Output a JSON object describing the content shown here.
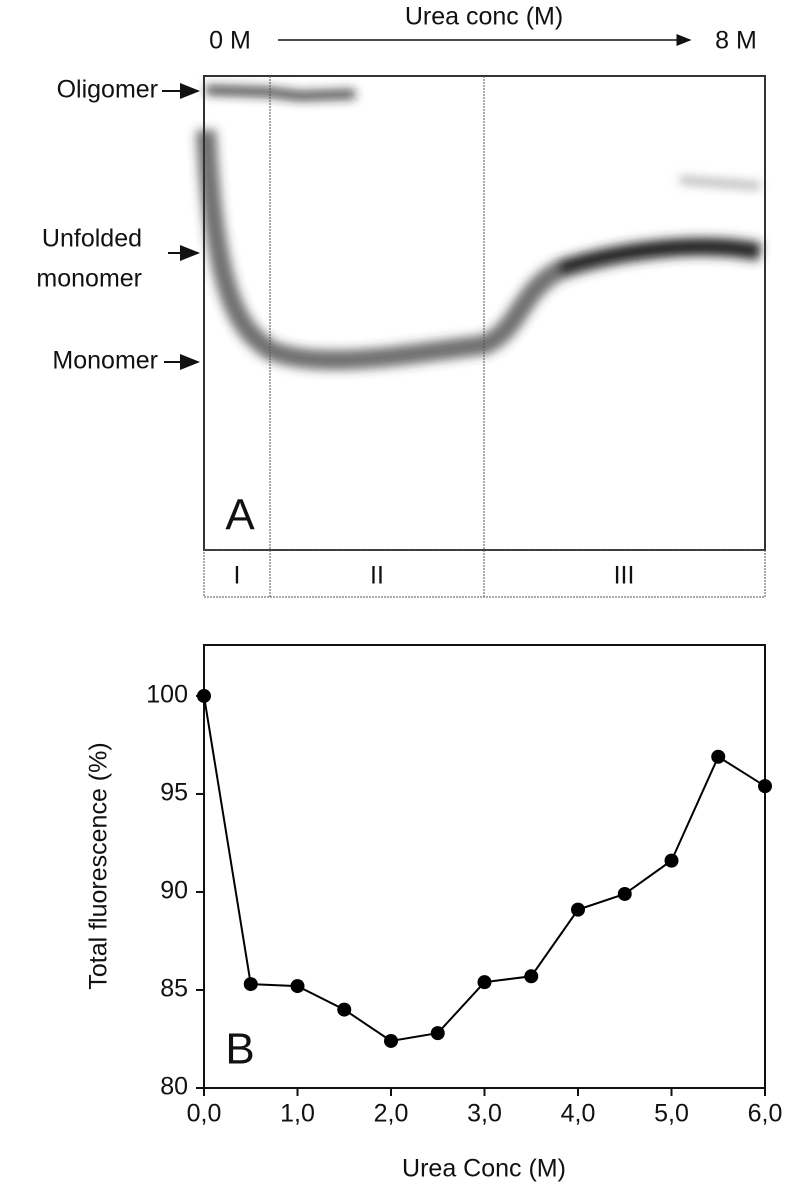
{
  "gel_panel": {
    "panel_label": "A",
    "scale_start": "0 M",
    "scale_title": "Urea conc (M)",
    "scale_end": "8 M",
    "band_labels": {
      "oligomer": "Oligomer",
      "unfolded_monomer": [
        "Unfolded",
        "monomer"
      ],
      "monomer": "Monomer"
    },
    "regions": [
      "I",
      "II",
      "III"
    ]
  },
  "chart_data": {
    "type": "line",
    "panel_label": "B",
    "x_label": "Urea Conc (M)",
    "y_label": "Total fluorescence (%)",
    "x": [
      0,
      0.5,
      1,
      1.5,
      2,
      2.5,
      3,
      3.5,
      4,
      4.5,
      5,
      5.5,
      6
    ],
    "series": [
      {
        "color": "#000000",
        "values": [
          100,
          85.3,
          85.2,
          84.0,
          82.4,
          82.8,
          85.4,
          85.7,
          89.1,
          89.9,
          91.6,
          96.9,
          95.4
        ]
      }
    ],
    "xlim": [
      0,
      6
    ],
    "ylim": [
      80,
      102.6
    ],
    "xticks": [
      {
        "value": 0,
        "label": "0,0"
      },
      {
        "value": 1,
        "label": "1,0"
      },
      {
        "value": 2,
        "label": "2,0"
      },
      {
        "value": 3,
        "label": "3,0"
      },
      {
        "value": 4,
        "label": "4,0"
      },
      {
        "value": 5,
        "label": "5,0"
      },
      {
        "value": 6,
        "label": "6,0"
      }
    ],
    "yticks": [
      80,
      85,
      90,
      95,
      100
    ]
  }
}
